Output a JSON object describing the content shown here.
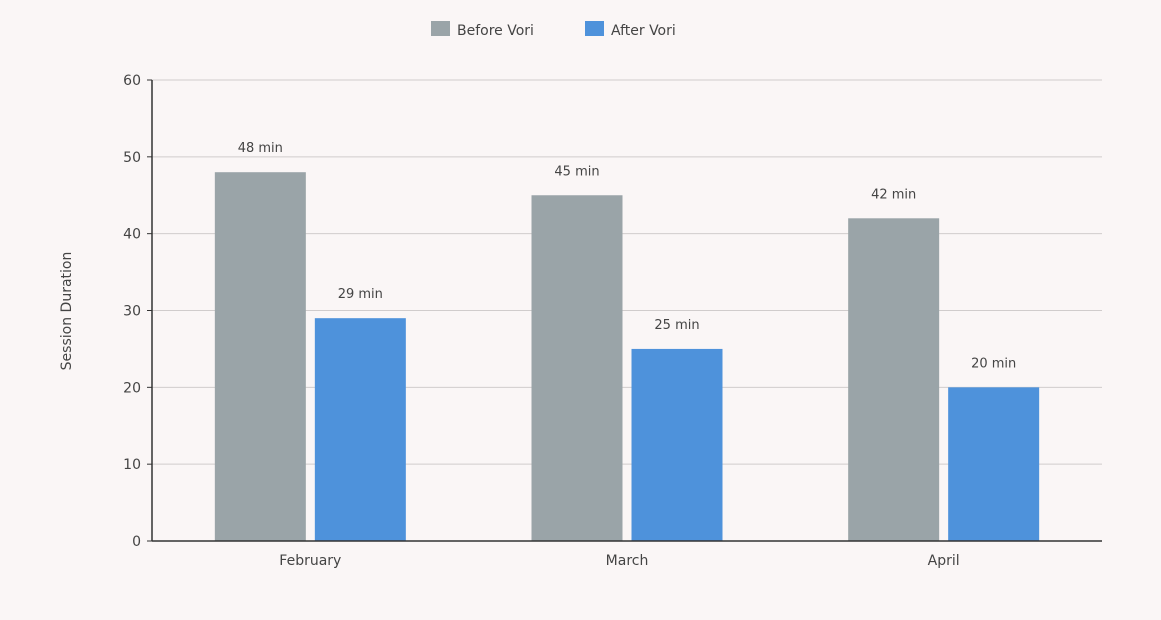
{
  "chart_data": {
    "type": "bar",
    "categories": [
      "February",
      "March",
      "April"
    ],
    "series": [
      {
        "name": "Before Vori",
        "color": "#9aa4a8",
        "values": [
          48,
          45,
          42
        ],
        "labels": [
          "48 min",
          "45 min",
          "42 min"
        ]
      },
      {
        "name": "After Vori",
        "color": "#4e92db",
        "values": [
          29,
          25,
          20
        ],
        "labels": [
          "29 min",
          "25 min",
          "20 min"
        ]
      }
    ],
    "ylabel": "Session Duration",
    "xlabel": "",
    "ylim": [
      0,
      60
    ],
    "yticks": [
      0,
      10,
      20,
      30,
      40,
      50,
      60
    ],
    "grid": true,
    "legend": "top-center"
  }
}
